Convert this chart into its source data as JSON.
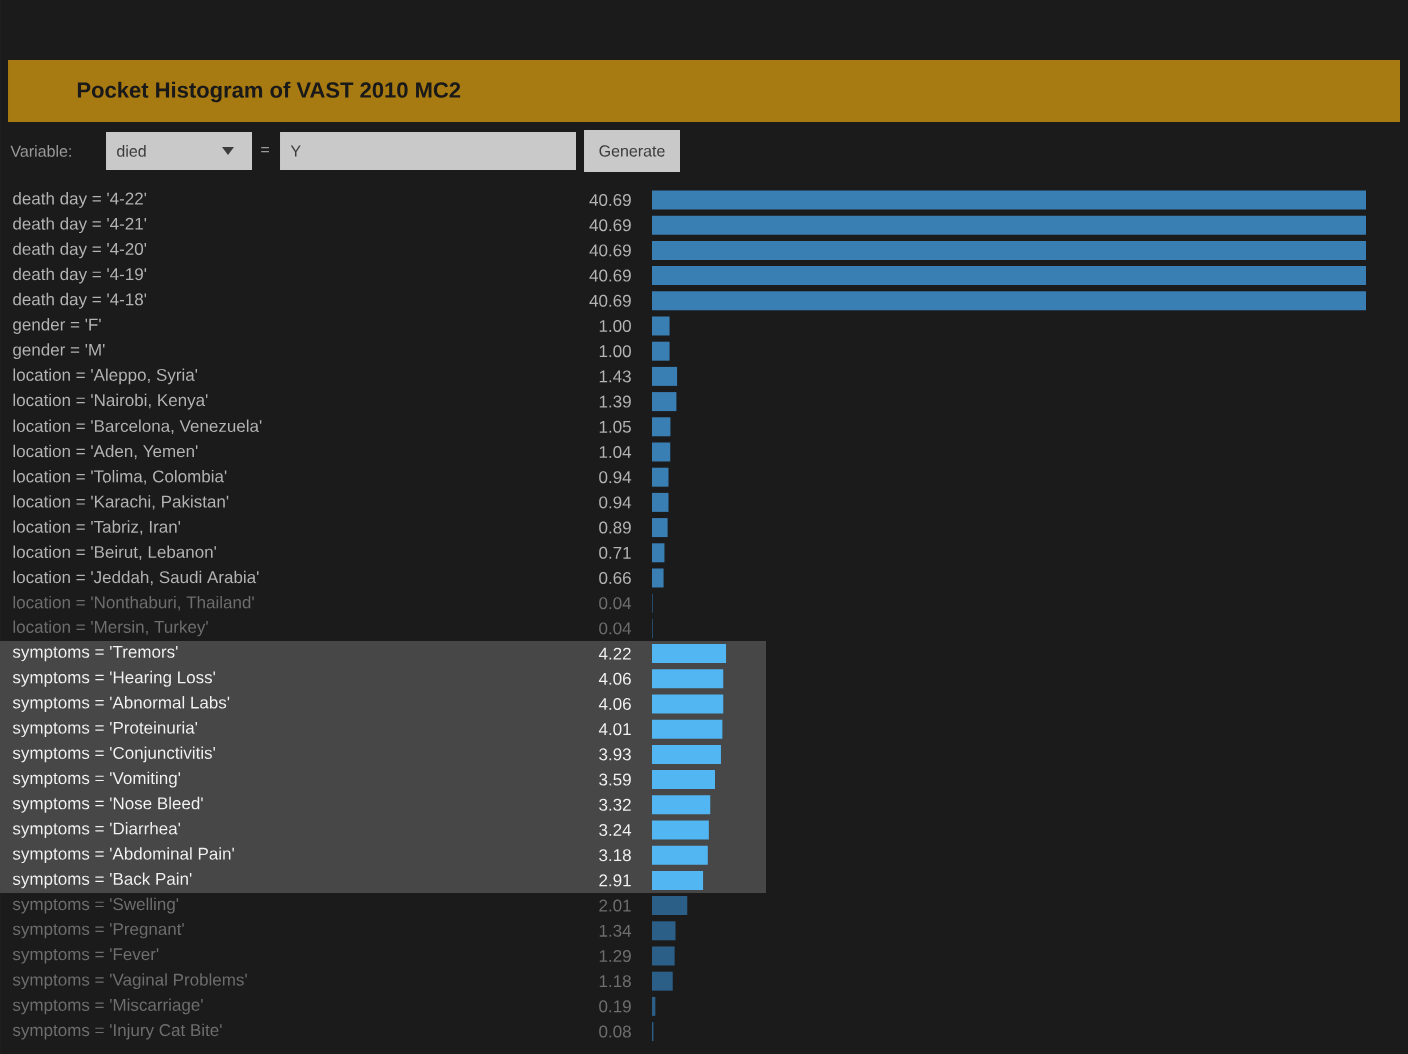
{
  "chart_data": {
    "type": "bar",
    "orientation": "horizontal",
    "title": "Pocket Histogram of VAST 2010 MC2",
    "categories": [
      "death day = '4-22'",
      "death day = '4-21'",
      "death day = '4-20'",
      "death day = '4-19'",
      "death day = '4-18'",
      "gender = 'F'",
      "gender = 'M'",
      "location = 'Aleppo, Syria'",
      "location = 'Nairobi, Kenya'",
      "location = 'Barcelona, Venezuela'",
      "location = 'Aden, Yemen'",
      "location = 'Tolima, Colombia'",
      "location = 'Karachi, Pakistan'",
      "location = 'Tabriz, Iran'",
      "location = 'Beirut, Lebanon'",
      "location = 'Jeddah, Saudi Arabia'",
      "location = 'Nonthaburi, Thailand'",
      "location = 'Mersin, Turkey'",
      "symptoms = 'Tremors'",
      "symptoms = 'Hearing Loss'",
      "symptoms = 'Abnormal Labs'",
      "symptoms = 'Proteinuria'",
      "symptoms = 'Conjunctivitis'",
      "symptoms = 'Vomiting'",
      "symptoms = 'Nose Bleed'",
      "symptoms = 'Diarrhea'",
      "symptoms = 'Abdominal Pain'",
      "symptoms = 'Back Pain'",
      "symptoms = 'Swelling'",
      "symptoms = 'Pregnant'",
      "symptoms = 'Fever'",
      "symptoms = 'Vaginal Problems'",
      "symptoms = 'Miscarriage'",
      "symptoms = 'Injury Cat Bite'"
    ],
    "values": [
      40.69,
      40.69,
      40.69,
      40.69,
      40.69,
      1.0,
      1.0,
      1.43,
      1.39,
      1.05,
      1.04,
      0.94,
      0.94,
      0.89,
      0.71,
      0.66,
      0.04,
      0.04,
      4.22,
      4.06,
      4.06,
      4.01,
      3.93,
      3.59,
      3.32,
      3.24,
      3.18,
      2.91,
      2.01,
      1.34,
      1.29,
      1.18,
      0.19,
      0.08
    ],
    "value_labels": [
      "40.69",
      "40.69",
      "40.69",
      "40.69",
      "40.69",
      "1.00",
      "1.00",
      "1.43",
      "1.39",
      "1.05",
      "1.04",
      "0.94",
      "0.94",
      "0.89",
      "0.71",
      "0.66",
      "0.04",
      "0.04",
      "4.22",
      "4.06",
      "4.06",
      "4.01",
      "3.93",
      "3.59",
      "3.32",
      "3.24",
      "3.18",
      "2.91",
      "2.01",
      "1.34",
      "1.29",
      "1.18",
      "0.19",
      "0.08"
    ],
    "colors": [
      "#3a7fb4",
      "#3a7fb4",
      "#3a7fb4",
      "#3a7fb4",
      "#3a7fb4",
      "#3a7fb4",
      "#3a7fb4",
      "#3a7fb4",
      "#3a7fb4",
      "#3a7fb4",
      "#3a7fb4",
      "#3a7fb4",
      "#3a7fb4",
      "#3a7fb4",
      "#3a7fb4",
      "#3a7fb4",
      "#2c5f88",
      "#2c5f88",
      "#52b6f2",
      "#52b6f2",
      "#52b6f2",
      "#52b6f2",
      "#52b6f2",
      "#52b6f2",
      "#52b6f2",
      "#52b6f2",
      "#52b6f2",
      "#52b6f2",
      "#2c5f88",
      "#2c5f88",
      "#2c5f88",
      "#2c5f88",
      "#2c5f88",
      "#2c5f88"
    ],
    "bands": [
      {
        "axis": "y",
        "from": "symptoms = 'Tremors'",
        "to": "symptoms = 'Back Pain'",
        "color": "#474747"
      }
    ],
    "annotations": [
      "Variable:",
      "died",
      "=",
      "Y",
      "Generate"
    ]
  }
}
